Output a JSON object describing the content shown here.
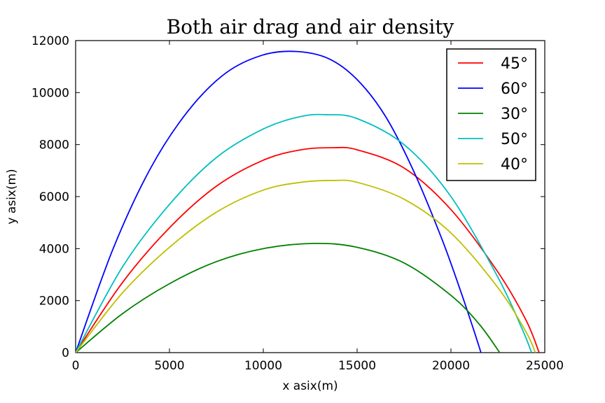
{
  "chart_data": {
    "type": "line",
    "title": "Both air drag and air density",
    "xlabel": "x asix(m)",
    "ylabel": "y asix(m)",
    "xlim": [
      0,
      25000
    ],
    "ylim": [
      0,
      12000
    ],
    "xticks": [
      0,
      5000,
      10000,
      15000,
      20000,
      25000
    ],
    "yticks": [
      0,
      2000,
      4000,
      6000,
      8000,
      10000,
      12000
    ],
    "grid": false,
    "legend_position": "top-right",
    "series": [
      {
        "name": "45°",
        "color": "#ff0000",
        "x": [
          0,
          2500,
          5000,
          7500,
          10000,
          12000,
          13700,
          15000,
          17500,
          20000,
          22500,
          24000,
          24700
        ],
        "y": [
          0,
          2700,
          4800,
          6400,
          7400,
          7800,
          7880,
          7800,
          7100,
          5500,
          3100,
          1250,
          0
        ]
      },
      {
        "name": "60°",
        "color": "#0000ff",
        "x": [
          0,
          2000,
          4000,
          6000,
          8000,
          10000,
          11800,
          13500,
          15000,
          16500,
          18000,
          19500,
          20500,
          21200,
          21600
        ],
        "y": [
          0,
          4000,
          7100,
          9300,
          10750,
          11450,
          11580,
          11300,
          10500,
          9100,
          7000,
          4400,
          2400,
          900,
          0
        ]
      },
      {
        "name": "30°",
        "color": "#008000",
        "x": [
          0,
          2500,
          5000,
          7500,
          10000,
          12700,
          15000,
          17500,
          20000,
          21500,
          22600
        ],
        "y": [
          0,
          1500,
          2650,
          3500,
          4000,
          4200,
          4050,
          3450,
          2200,
          1100,
          0
        ]
      },
      {
        "name": "50°",
        "color": "#00bfbf",
        "x": [
          0,
          2500,
          5000,
          7500,
          10000,
          12000,
          13400,
          15000,
          17500,
          20000,
          22500,
          23800,
          24300
        ],
        "y": [
          0,
          3300,
          5700,
          7500,
          8600,
          9080,
          9150,
          9000,
          8000,
          6000,
          2900,
          900,
          0
        ]
      },
      {
        "name": "40°",
        "color": "#bfbf00",
        "x": [
          0,
          2500,
          5000,
          7500,
          10000,
          12000,
          13700,
          15000,
          17500,
          20000,
          22500,
          24000,
          24500
        ],
        "y": [
          0,
          2300,
          4050,
          5400,
          6250,
          6550,
          6620,
          6550,
          5900,
          4600,
          2500,
          800,
          0
        ]
      }
    ]
  }
}
